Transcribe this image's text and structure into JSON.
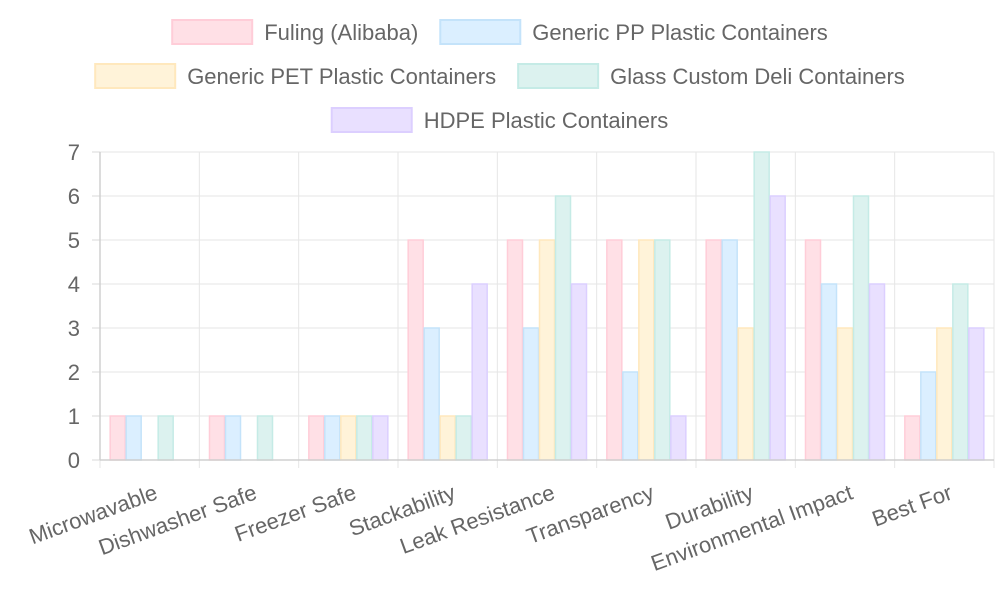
{
  "chart_data": {
    "type": "bar",
    "categories": [
      "Microwavable",
      "Dishwasher Safe",
      "Freezer Safe",
      "Stackability",
      "Leak Resistance",
      "Transparency",
      "Durability",
      "Environmental Impact",
      "Best For"
    ],
    "series": [
      {
        "name": "Fuling (Alibaba)",
        "values": [
          1,
          1,
          1,
          5,
          5,
          5,
          5,
          5,
          1
        ],
        "fill": "#ffe0e6",
        "stroke": "#ffcdd8"
      },
      {
        "name": "Generic PP Plastic Containers",
        "values": [
          1,
          1,
          1,
          3,
          3,
          2,
          5,
          4,
          2
        ],
        "fill": "#dbefff",
        "stroke": "#c4e3fa"
      },
      {
        "name": "Generic PET Plastic Containers",
        "values": [
          0,
          0,
          1,
          1,
          5,
          5,
          3,
          3,
          3
        ],
        "fill": "#fff3d9",
        "stroke": "#ffe8bd"
      },
      {
        "name": "Glass Custom Deli Containers",
        "values": [
          1,
          1,
          1,
          1,
          6,
          5,
          7,
          6,
          4
        ],
        "fill": "#dcf2ef",
        "stroke": "#c5ebe6"
      },
      {
        "name": "HDPE Plastic Containers",
        "values": [
          0,
          0,
          1,
          4,
          4,
          1,
          6,
          4,
          3
        ],
        "fill": "#e9e0ff",
        "stroke": "#dccfff"
      }
    ],
    "ylim": [
      0,
      7
    ],
    "y_ticks": [
      0,
      1,
      2,
      3,
      4,
      5,
      6,
      7
    ],
    "grid": true,
    "legend_position": "top"
  }
}
